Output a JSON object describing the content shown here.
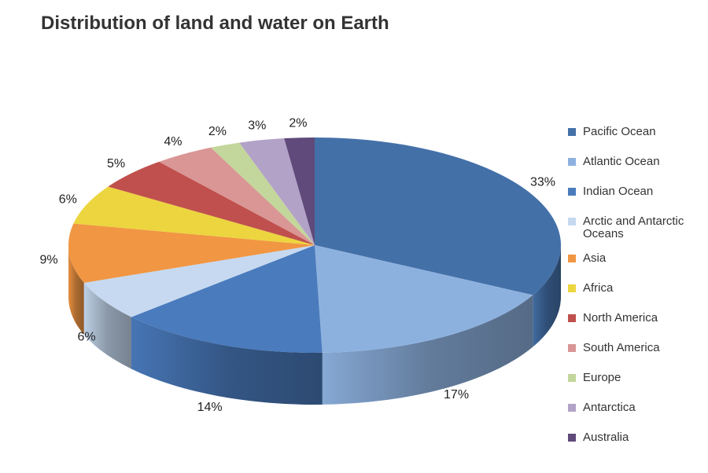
{
  "title": "Distribution of land and water on Earth",
  "chart_data": {
    "type": "pie",
    "title": "Distribution of land and water on Earth",
    "style": "3d",
    "legend_position": "right",
    "slices": [
      {
        "label": "Pacific Ocean",
        "value": 33,
        "data_label": "33%",
        "color": "#4470a8"
      },
      {
        "label": "Atlantic Ocean",
        "value": 17,
        "data_label": "17%",
        "color": "#8db1df"
      },
      {
        "label": "Indian Ocean",
        "value": 14,
        "data_label": "14%",
        "color": "#4a7bbd"
      },
      {
        "label": "Arctic and Antarctic Oceans",
        "value": 6,
        "data_label": "6%",
        "color": "#c6d9f0"
      },
      {
        "label": "Asia",
        "value": 9,
        "data_label": "9%",
        "color": "#f19643"
      },
      {
        "label": "Africa",
        "value": 6,
        "data_label": "6%",
        "color": "#ecd53f"
      },
      {
        "label": "North America",
        "value": 5,
        "data_label": "5%",
        "color": "#c0504d"
      },
      {
        "label": "South America",
        "value": 4,
        "data_label": "4%",
        "color": "#d99694"
      },
      {
        "label": "Europe",
        "value": 2,
        "data_label": "2%",
        "color": "#c3d69b"
      },
      {
        "label": "Antarctica",
        "value": 3,
        "data_label": "3%",
        "color": "#b3a2c7"
      },
      {
        "label": "Australia",
        "value": 2,
        "data_label": "2%",
        "color": "#5f4a7b"
      }
    ]
  }
}
